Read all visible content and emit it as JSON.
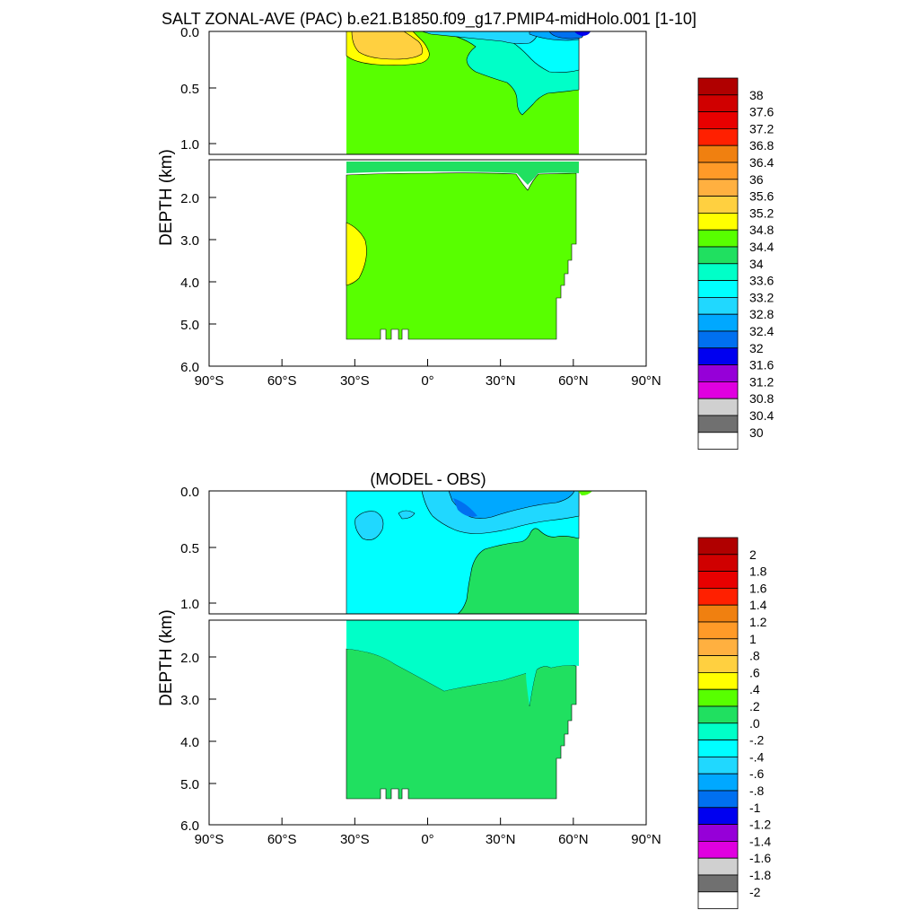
{
  "title": "SALT ZONAL-AVE (PAC) b.e21.B1850.f09_g17.PMIP4-midHolo.001 [1-10]",
  "chart_data": [
    {
      "type": "heatmap",
      "title": "",
      "ylabel": "DEPTH (km)",
      "xlim": [
        -90,
        90
      ],
      "upper_depth_km": [
        0,
        1.12
      ],
      "lower_depth_km": [
        1.12,
        6.0
      ],
      "upper_ticks": [
        "0.0",
        "0.5",
        "1.0"
      ],
      "lower_ticks": [
        "2.0",
        "3.0",
        "4.0",
        "5.0",
        "6.0"
      ],
      "x_ticks": [
        "90°S",
        "60°S",
        "30°S",
        "0°",
        "30°N",
        "60°N",
        "90°N"
      ],
      "colorbar": {
        "levels": [
          "38",
          "37.6",
          "37.2",
          "36.8",
          "36.4",
          "36",
          "35.6",
          "35.2",
          "34.8",
          "34.4",
          "34",
          "33.6",
          "33.2",
          "32.8",
          "32.4",
          "32",
          "31.6",
          "31.2",
          "30.8",
          "30.4",
          "30"
        ],
        "colors": [
          "#b00000",
          "#d00000",
          "#e80000",
          "#ff2000",
          "#f08010",
          "#ff9a28",
          "#ffb040",
          "#ffd040",
          "#ffff00",
          "#58ff00",
          "#20e060",
          "#00ffc8",
          "#00ffff",
          "#20d8ff",
          "#00a8ff",
          "#0070f0",
          "#0000f0",
          "#9600d8",
          "#e000e0",
          "#d0d0d0",
          "#707070",
          "#ffffff"
        ]
      },
      "field_note_values": {
        "background": 34.6,
        "deep_high": 35.0,
        "upper_high": 35.4
      }
    },
    {
      "type": "heatmap",
      "title": "(MODEL - OBS)",
      "ylabel": "DEPTH (km)",
      "xlim": [
        -90,
        90
      ],
      "upper_depth_km": [
        0,
        1.12
      ],
      "lower_depth_km": [
        1.12,
        6.0
      ],
      "upper_ticks": [
        "0.0",
        "0.5",
        "1.0"
      ],
      "lower_ticks": [
        "2.0",
        "3.0",
        "4.0",
        "5.0",
        "6.0"
      ],
      "x_ticks": [
        "90°S",
        "60°S",
        "30°S",
        "0°",
        "30°N",
        "60°N",
        "90°N"
      ],
      "colorbar": {
        "levels": [
          "2",
          "1.8",
          "1.6",
          "1.4",
          "1.2",
          "1",
          ".8",
          ".6",
          ".4",
          ".2",
          ".0",
          "-.2",
          "-.4",
          "-.6",
          "-.8",
          "-1",
          "-1.2",
          "-1.4",
          "-1.6",
          "-1.8",
          "-2"
        ],
        "colors": [
          "#b00000",
          "#d00000",
          "#e80000",
          "#ff2000",
          "#f08010",
          "#ff9a28",
          "#ffb040",
          "#ffd040",
          "#ffff00",
          "#58ff00",
          "#20e060",
          "#00ffc8",
          "#00ffff",
          "#20d8ff",
          "#00a8ff",
          "#0070f0",
          "#0000f0",
          "#9600d8",
          "#e000e0",
          "#d0d0d0",
          "#707070",
          "#ffffff"
        ]
      }
    }
  ]
}
